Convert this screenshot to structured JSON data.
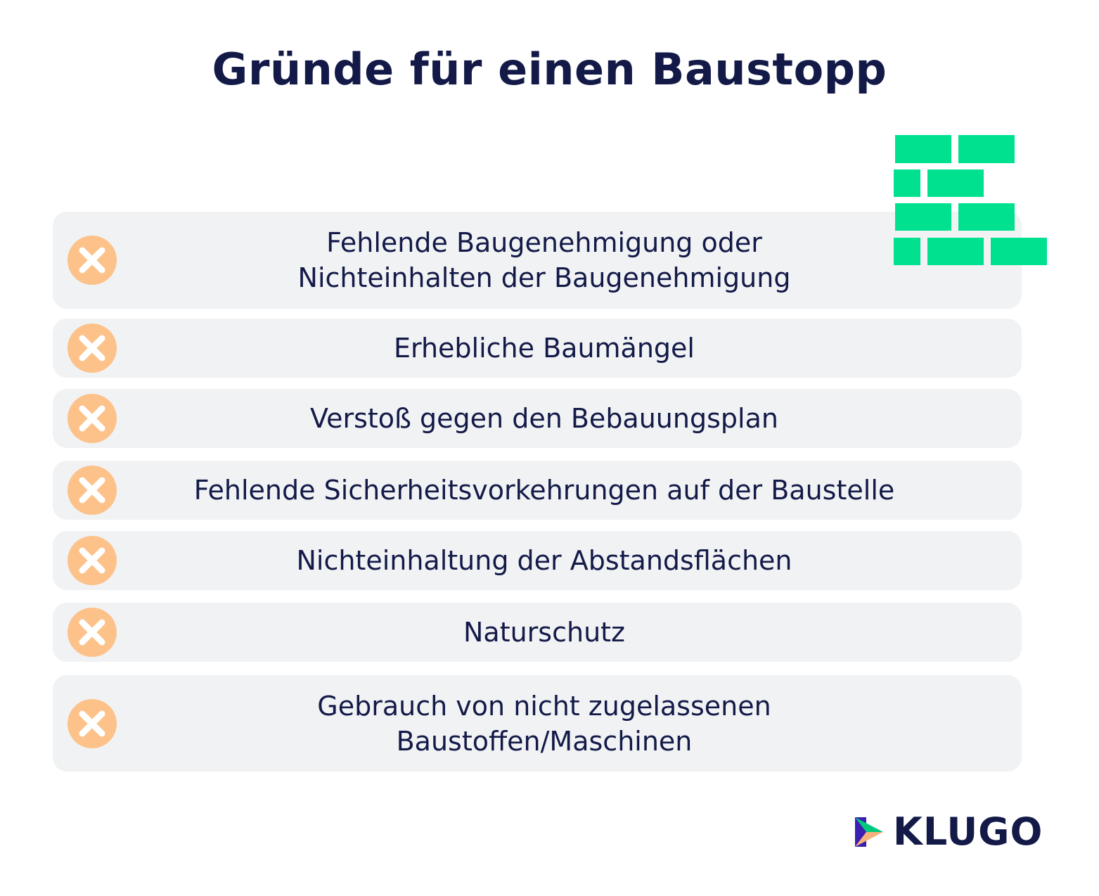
{
  "title": "Gründe für einen Baustopp",
  "items": [
    {
      "lines": [
        "Fehlende Baugenehmigung oder",
        "Nichteinhalten der Baugenehmigung"
      ]
    },
    {
      "lines": [
        "Erhebliche Baumängel"
      ]
    },
    {
      "lines": [
        "Verstoß gegen den Bebauungsplan"
      ]
    },
    {
      "lines": [
        "Fehlende Sicherheitsvorkehrungen auf der Baustelle"
      ]
    },
    {
      "lines": [
        "Nichteinhaltung der Abstandsflächen"
      ]
    },
    {
      "lines": [
        "Naturschutz"
      ]
    },
    {
      "lines": [
        "Gebrauch von nicht zugelassenen",
        "Baustoffen/Maschinen"
      ]
    }
  ],
  "logo": {
    "text": "KLUGO"
  }
}
